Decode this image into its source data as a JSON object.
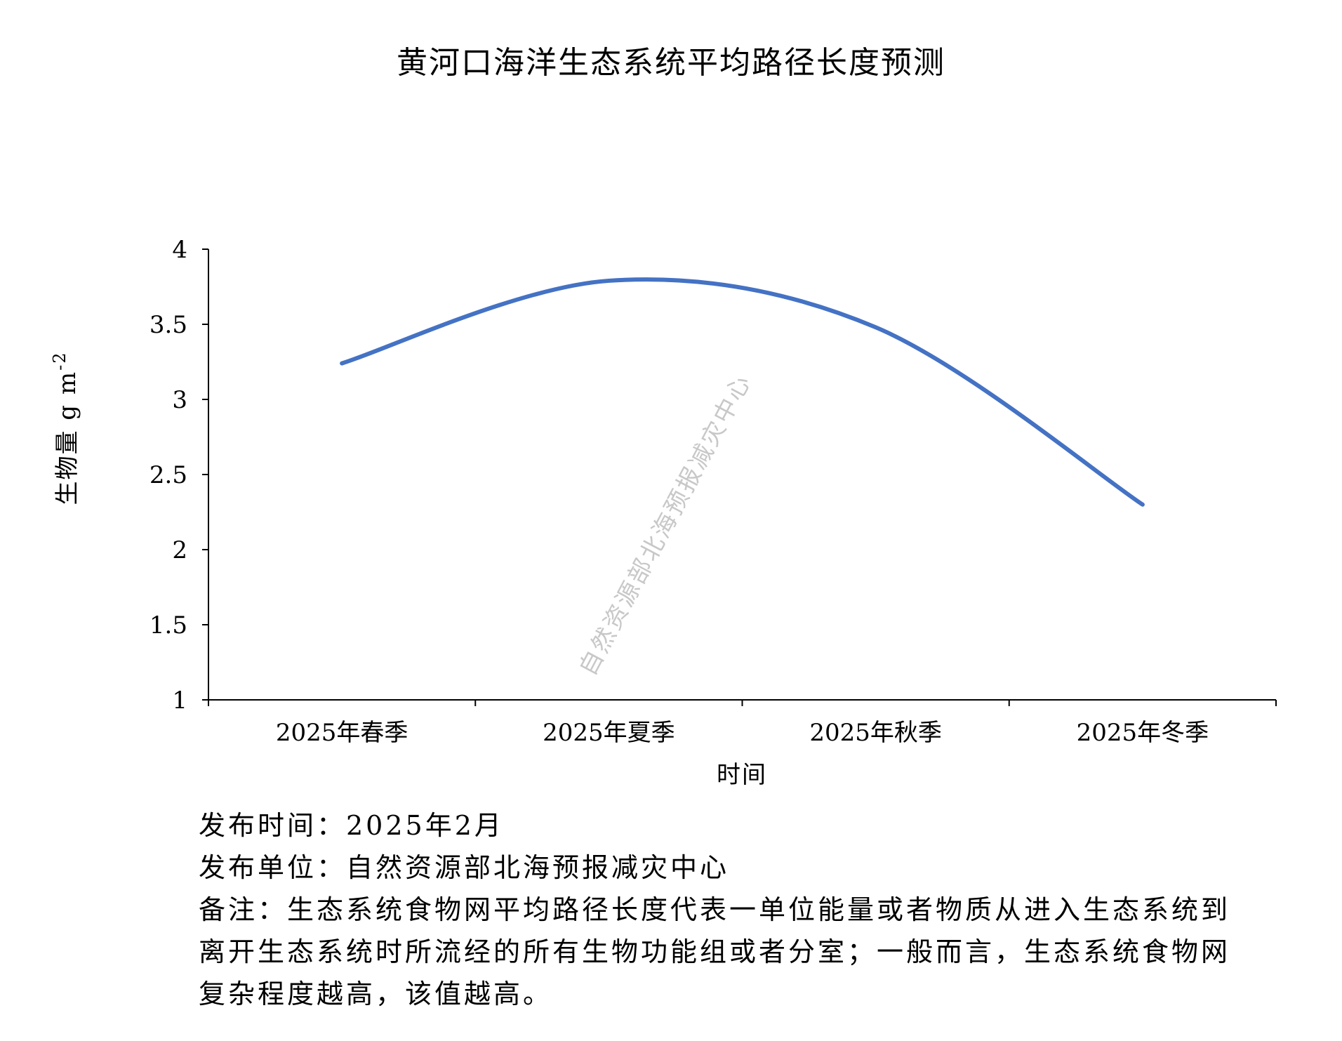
{
  "chart_data": {
    "type": "line",
    "title": "黄河口海洋生态系统平均路径长度预测",
    "xlabel": "时间",
    "ylabel": "生物量 g m",
    "ylabel_sup": "-2",
    "categories": [
      "2025年春季",
      "2025年夏季",
      "2025年秋季",
      "2025年冬季"
    ],
    "series": [
      {
        "values": [
          3.24,
          3.79,
          3.48,
          2.3
        ],
        "color": "#4472C4"
      }
    ],
    "ylim": [
      1,
      4
    ],
    "yticks": [
      "1",
      "1.5",
      "2",
      "2.5",
      "3",
      "3.5",
      "4"
    ],
    "smooth": true,
    "grid": false,
    "legend": "none"
  },
  "watermark": "自然资源部北海预报减灾中心",
  "footer": {
    "release_time": "发布时间：2025年2月",
    "publisher": "发布单位：自然资源部北海预报减灾中心",
    "note": "备注：生态系统食物网平均路径长度代表一单位能量或者物质从进入生态系统到离开生态系统时所流经的所有生物功能组或者分室；一般而言，生态系统食物网复杂程度越高，该值越高。"
  }
}
